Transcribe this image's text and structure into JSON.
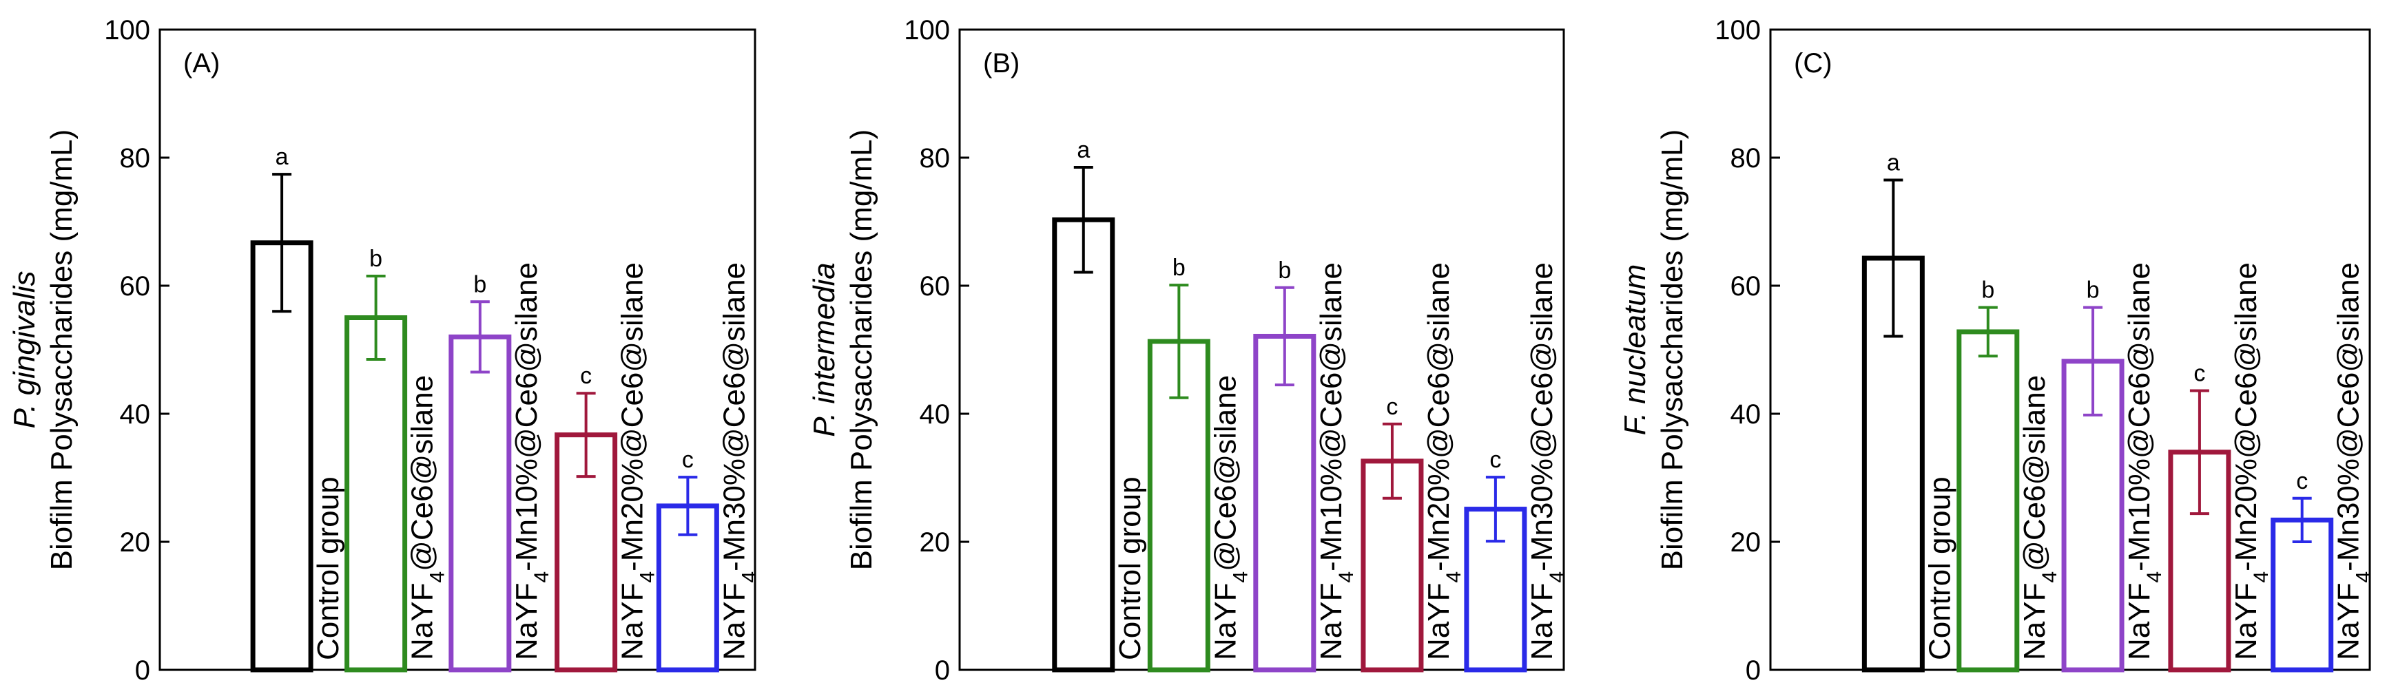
{
  "chart_data": [
    {
      "type": "bar",
      "panel": "(A)",
      "species": "P. gingivalis",
      "ylabel": "Biofilm Polysaccharides (mg/mL)",
      "ylim": [
        0,
        100
      ],
      "yticks": [
        0,
        20,
        40,
        60,
        80,
        100
      ],
      "categories": [
        "Control group",
        "NaYF4@Ce6@silane",
        "NaYF4-Mn10%@Ce6@silane",
        "NaYF4-Mn20%@Ce6@silane",
        "NaYF4-Mn30%@Ce6@silane"
      ],
      "values": [
        66.7,
        55.0,
        52.0,
        36.7,
        25.6
      ],
      "errors": [
        10.7,
        6.5,
        5.5,
        6.5,
        4.5
      ],
      "letters": [
        "a",
        "b",
        "b",
        "c",
        "c"
      ],
      "colors": [
        "#000000",
        "#2e8b1f",
        "#8e44c8",
        "#a0183c",
        "#2a2ae8"
      ]
    },
    {
      "type": "bar",
      "panel": "(B)",
      "species": "P. intermedia",
      "ylabel": "Biofilm Polysaccharides (mg/mL)",
      "ylim": [
        0,
        100
      ],
      "yticks": [
        0,
        20,
        40,
        60,
        80,
        100
      ],
      "categories": [
        "Control group",
        "NaYF4@Ce6@silane",
        "NaYF4-Mn10%@Ce6@silane",
        "NaYF4-Mn20%@Ce6@silane",
        "NaYF4-Mn30%@Ce6@silane"
      ],
      "values": [
        70.3,
        51.3,
        52.1,
        32.6,
        25.1
      ],
      "errors": [
        8.2,
        8.8,
        7.6,
        5.8,
        5.0
      ],
      "letters": [
        "a",
        "b",
        "b",
        "c",
        "c"
      ],
      "colors": [
        "#000000",
        "#2e8b1f",
        "#8e44c8",
        "#a0183c",
        "#2a2ae8"
      ]
    },
    {
      "type": "bar",
      "panel": "(C)",
      "species": "F. nucleatum",
      "ylabel": "Biofilm Polysaccharides (mg/mL)",
      "ylim": [
        0,
        100
      ],
      "yticks": [
        0,
        20,
        40,
        60,
        80,
        100
      ],
      "categories": [
        "Control group",
        "NaYF4@Ce6@silane",
        "NaYF4-Mn10%@Ce6@silane",
        "NaYF4-Mn20%@Ce6@silane",
        "NaYF4-Mn30%@Ce6@silane"
      ],
      "values": [
        64.3,
        52.8,
        48.2,
        34.0,
        23.4
      ],
      "errors": [
        12.2,
        3.8,
        8.4,
        9.6,
        3.4
      ],
      "letters": [
        "a",
        "b",
        "b",
        "c",
        "c"
      ],
      "colors": [
        "#000000",
        "#2e8b1f",
        "#8e44c8",
        "#a0183c",
        "#2a2ae8"
      ]
    }
  ]
}
